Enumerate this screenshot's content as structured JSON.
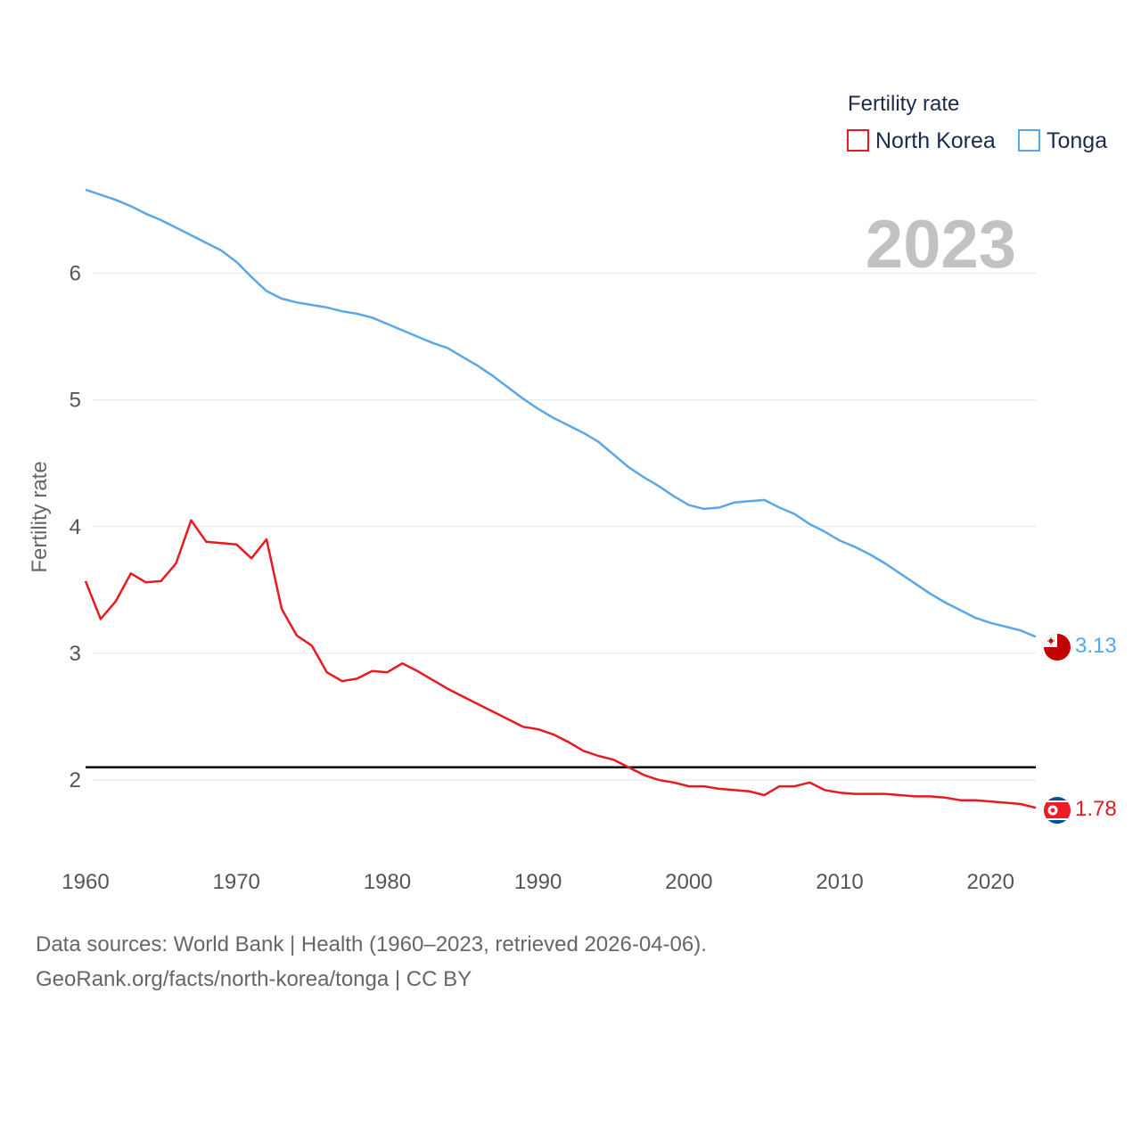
{
  "chart_data": {
    "type": "line",
    "title": "Fertility rate",
    "ylabel": "Fertility rate",
    "xlabel": "",
    "current_year": "2023",
    "xlim": [
      1960,
      2023
    ],
    "ylim": [
      1.5,
      6.75
    ],
    "x_ticks": [
      1960,
      1970,
      1980,
      1990,
      2000,
      2010,
      2020
    ],
    "y_ticks": [
      2,
      3,
      4,
      5,
      6
    ],
    "grid": true,
    "reference_line": {
      "value": 2.1,
      "color": "#000000"
    },
    "legend": {
      "title": "Fertility rate",
      "position": "top-right"
    },
    "x": [
      1960,
      1961,
      1962,
      1963,
      1964,
      1965,
      1966,
      1967,
      1968,
      1969,
      1970,
      1971,
      1972,
      1973,
      1974,
      1975,
      1976,
      1977,
      1978,
      1979,
      1980,
      1981,
      1982,
      1983,
      1984,
      1985,
      1986,
      1987,
      1988,
      1989,
      1990,
      1991,
      1992,
      1993,
      1994,
      1995,
      1996,
      1997,
      1998,
      1999,
      2000,
      2001,
      2002,
      2003,
      2004,
      2005,
      2006,
      2007,
      2008,
      2009,
      2010,
      2011,
      2012,
      2013,
      2014,
      2015,
      2016,
      2017,
      2018,
      2019,
      2020,
      2021,
      2022,
      2023
    ],
    "series": [
      {
        "name": "North Korea",
        "color": "#e8191f",
        "end_label": "1.78",
        "flag": "north-korea-flag-icon",
        "values": [
          3.57,
          3.27,
          3.41,
          3.63,
          3.56,
          3.57,
          3.71,
          4.05,
          3.88,
          3.87,
          3.86,
          3.75,
          3.9,
          3.35,
          3.14,
          3.06,
          2.85,
          2.78,
          2.8,
          2.86,
          2.85,
          2.92,
          2.86,
          2.79,
          2.72,
          2.66,
          2.6,
          2.54,
          2.48,
          2.42,
          2.4,
          2.36,
          2.3,
          2.23,
          2.19,
          2.16,
          2.1,
          2.04,
          2.0,
          1.98,
          1.95,
          1.95,
          1.93,
          1.92,
          1.91,
          1.88,
          1.95,
          1.95,
          1.98,
          1.92,
          1.9,
          1.89,
          1.89,
          1.89,
          1.88,
          1.87,
          1.87,
          1.86,
          1.84,
          1.84,
          1.83,
          1.82,
          1.81,
          1.78
        ]
      },
      {
        "name": "Tonga",
        "color": "#5aa7e8",
        "end_label": "3.13",
        "flag": "tonga-flag-icon",
        "values": [
          6.66,
          6.62,
          6.58,
          6.53,
          6.47,
          6.42,
          6.36,
          6.3,
          6.24,
          6.18,
          6.09,
          5.97,
          5.86,
          5.8,
          5.77,
          5.75,
          5.73,
          5.7,
          5.68,
          5.65,
          5.6,
          5.55,
          5.5,
          5.45,
          5.41,
          5.34,
          5.27,
          5.19,
          5.1,
          5.01,
          4.93,
          4.86,
          4.8,
          4.74,
          4.67,
          4.57,
          4.47,
          4.39,
          4.32,
          4.24,
          4.17,
          4.14,
          4.15,
          4.19,
          4.2,
          4.21,
          4.15,
          4.1,
          4.02,
          3.96,
          3.89,
          3.84,
          3.78,
          3.71,
          3.63,
          3.55,
          3.47,
          3.4,
          3.34,
          3.28,
          3.24,
          3.21,
          3.18,
          3.13
        ]
      }
    ]
  },
  "footer": {
    "sources": "Data sources: World Bank | Health (1960–2023, retrieved 2026-04-06).",
    "credit": "GeoRank.org/facts/north-korea/tonga | CC BY"
  }
}
